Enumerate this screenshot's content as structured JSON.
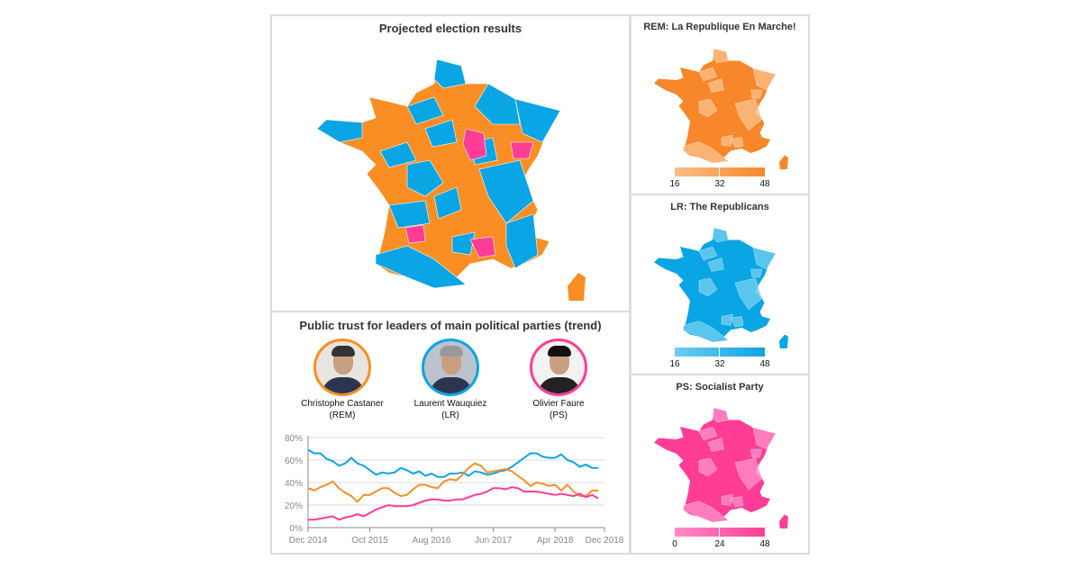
{
  "main_map": {
    "title": "Projected election results"
  },
  "small_maps": [
    {
      "title": "REM: La Republique En Marche!",
      "color_from": "#fdbf86",
      "color_to": "#f7872a",
      "ticks": [
        "16",
        "32",
        "48"
      ]
    },
    {
      "title": "LR: The Republicans",
      "color_from": "#6fcdf0",
      "color_to": "#0aa5e4",
      "ticks": [
        "16",
        "32",
        "48"
      ]
    },
    {
      "title": "PS: Socialist Party",
      "color_from": "#ff8cc8",
      "color_to": "#ff3d96",
      "ticks": [
        "0",
        "24",
        "48"
      ]
    }
  ],
  "colors": {
    "REM": "#f98e24",
    "LR": "#0aa5e4",
    "PS": "#ff3d96"
  },
  "trend": {
    "title": "Public trust for leaders of main political parties (trend)",
    "leaders": [
      {
        "name": "Christophe Castaner",
        "party": "(REM)",
        "color": "#f98e24"
      },
      {
        "name": "Laurent Wauquiez",
        "party": "(LR)",
        "color": "#0aa5e4"
      },
      {
        "name": "Olivier Faure",
        "party": "(PS)",
        "color": "#ff3d96"
      }
    ]
  },
  "chart_data": {
    "type": "line",
    "x_start": "Dec 2014",
    "x_ticks": [
      "Dec 2014",
      "Oct 2015",
      "Aug 2016",
      "Jun 2017",
      "Apr 2018",
      "Dec 2018"
    ],
    "y_ticks": [
      "0%",
      "20%",
      "40%",
      "60%",
      "80%"
    ],
    "ylim": [
      0,
      80
    ],
    "grid": true,
    "series": [
      {
        "party": "LR",
        "color": "#0aa5e4",
        "values": [
          69,
          66,
          66,
          61,
          59,
          55,
          57,
          62,
          57,
          55,
          51,
          47,
          49,
          48,
          49,
          53,
          51,
          48,
          50,
          46,
          48,
          45,
          45,
          48,
          48,
          49,
          46,
          50,
          49,
          47,
          48,
          50,
          51,
          54,
          58,
          62,
          66,
          66,
          63,
          62,
          62,
          65,
          60,
          58,
          54,
          56,
          53,
          53
        ]
      },
      {
        "party": "REM",
        "color": "#f98e24",
        "values": [
          35,
          33,
          36,
          38,
          41,
          35,
          31,
          28,
          23,
          29,
          29,
          32,
          35,
          35,
          31,
          28,
          29,
          34,
          38,
          38,
          36,
          35,
          41,
          43,
          42,
          47,
          53,
          57,
          55,
          49,
          50,
          51,
          52,
          50,
          46,
          42,
          37,
          40,
          39,
          37,
          38,
          33,
          38,
          32,
          28,
          28,
          33,
          33
        ]
      },
      {
        "party": "PS",
        "color": "#ff3d96",
        "values": [
          7,
          7,
          8,
          9,
          10,
          7,
          9,
          10,
          12,
          10,
          13,
          16,
          18,
          20,
          19,
          19,
          19,
          20,
          22,
          24,
          25,
          25,
          24,
          24,
          25,
          25,
          27,
          29,
          30,
          32,
          35,
          35,
          34,
          36,
          35,
          32,
          32,
          32,
          31,
          30,
          29,
          30,
          29,
          28,
          30,
          27,
          29,
          26
        ]
      }
    ]
  }
}
